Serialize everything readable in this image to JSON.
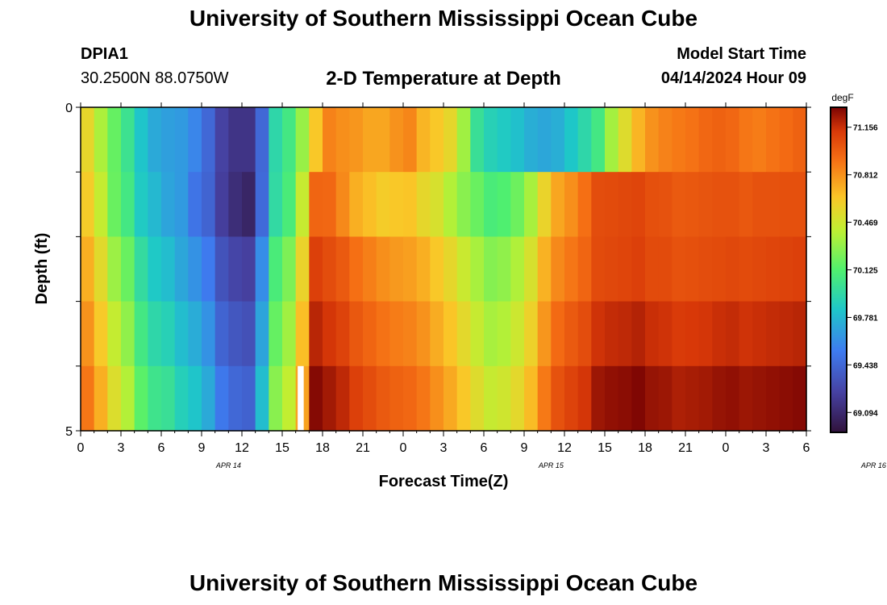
{
  "header": {
    "title": "University of Southern Mississippi Ocean Cube",
    "station_id": "DPIA1",
    "station_coords": "30.2500N  88.0750W",
    "subtitle": "2-D Temperature at Depth",
    "model_start_label": "Model Start Time",
    "model_start_value": "04/14/2024 Hour 09"
  },
  "footer": {
    "title": "University of Southern Mississippi Ocean Cube"
  },
  "chart_data": {
    "type": "heatmap",
    "title": "2-D Temperature at Depth",
    "xlabel": "Forecast Time(Z)",
    "ylabel": "Depth (ft)",
    "x_tick_labels": [
      "0",
      "3",
      "6",
      "9",
      "12",
      "15",
      "18",
      "21",
      "0",
      "3",
      "6",
      "9",
      "12",
      "15",
      "18",
      "21",
      "0",
      "3",
      "6"
    ],
    "date_labels": [
      {
        "text": "APR 14",
        "tick_index": 11
      },
      {
        "text": "APR 15",
        "tick_index": 35
      },
      {
        "text": "APR 16",
        "tick_index": 59
      }
    ],
    "y_tick_labels": [
      "0",
      "5"
    ],
    "ylim": [
      0,
      5
    ],
    "depth_bins": 5,
    "time_steps": 54,
    "colorbar": {
      "unit": "degF",
      "min": 68.95,
      "max": 71.3,
      "tick_labels": [
        "71.156",
        "70.812",
        "70.469",
        "70.125",
        "69.781",
        "69.438",
        "69.094"
      ],
      "tick_values": [
        71.156,
        70.812,
        70.469,
        70.125,
        69.781,
        69.438,
        69.094
      ]
    },
    "missing": [
      {
        "depth_bin": 4,
        "time_index": 16
      }
    ],
    "values_degF": [
      [
        70.56,
        70.36,
        70.18,
        70.02,
        69.83,
        69.72,
        69.68,
        69.66,
        69.58,
        69.44,
        69.24,
        69.16,
        69.16,
        69.44,
        69.94,
        70.06,
        70.31,
        70.64,
        70.86,
        70.82,
        70.8,
        70.75,
        70.75,
        70.81,
        70.85,
        70.7,
        70.64,
        70.56,
        70.33,
        70.0,
        69.9,
        69.86,
        69.81,
        69.74,
        69.71,
        69.74,
        69.84,
        69.94,
        70.06,
        70.34,
        70.53,
        70.7,
        70.81,
        70.86,
        70.89,
        70.91,
        70.95,
        70.97,
        70.95,
        70.9,
        70.88,
        70.91,
        70.94,
        70.97
      ],
      [
        70.62,
        70.43,
        70.19,
        70.06,
        69.86,
        69.78,
        69.7,
        69.66,
        69.5,
        69.42,
        69.22,
        69.12,
        69.07,
        69.45,
        69.96,
        70.09,
        70.44,
        70.96,
        70.95,
        70.84,
        70.72,
        70.67,
        70.62,
        70.64,
        70.65,
        70.56,
        70.5,
        70.38,
        70.27,
        70.19,
        70.09,
        70.12,
        70.2,
        70.35,
        70.58,
        70.75,
        70.82,
        70.92,
        71.05,
        71.06,
        71.07,
        71.08,
        71.04,
        71.03,
        71.0,
        71.01,
        71.02,
        71.03,
        71.03,
        71.01,
        71.03,
        71.03,
        71.04,
        71.04
      ],
      [
        70.72,
        70.54,
        70.32,
        70.19,
        69.97,
        69.85,
        69.8,
        69.71,
        69.63,
        69.53,
        69.33,
        69.26,
        69.23,
        69.61,
        70.09,
        70.24,
        70.58,
        71.1,
        71.05,
        71.0,
        70.92,
        70.87,
        70.82,
        70.79,
        70.77,
        70.72,
        70.64,
        70.56,
        70.45,
        70.35,
        70.26,
        70.29,
        70.37,
        70.5,
        70.71,
        70.84,
        70.9,
        70.96,
        71.06,
        71.07,
        71.08,
        71.1,
        71.06,
        71.06,
        71.03,
        71.04,
        71.05,
        71.06,
        71.07,
        71.06,
        71.07,
        71.08,
        71.09,
        71.1
      ],
      [
        70.81,
        70.63,
        70.43,
        70.29,
        70.06,
        69.94,
        69.9,
        69.8,
        69.73,
        69.63,
        69.42,
        69.35,
        69.32,
        69.7,
        70.18,
        70.33,
        70.67,
        71.19,
        71.14,
        71.09,
        71.01,
        70.96,
        70.91,
        70.88,
        70.86,
        70.81,
        70.73,
        70.65,
        70.55,
        70.44,
        70.35,
        70.38,
        70.46,
        70.59,
        70.8,
        70.94,
        71.0,
        71.05,
        71.15,
        71.17,
        71.18,
        71.2,
        71.16,
        71.15,
        71.12,
        71.13,
        71.14,
        71.16,
        71.17,
        71.15,
        71.16,
        71.17,
        71.18,
        71.19
      ],
      [
        70.9,
        70.72,
        70.52,
        70.38,
        70.15,
        70.03,
        70.0,
        69.89,
        69.83,
        69.72,
        69.52,
        69.44,
        69.41,
        69.8,
        70.27,
        70.42,
        70.76,
        71.28,
        71.23,
        71.18,
        71.1,
        71.05,
        71.0,
        70.97,
        70.95,
        70.9,
        70.82,
        70.74,
        70.64,
        70.53,
        70.44,
        70.47,
        70.55,
        70.68,
        70.89,
        71.03,
        71.09,
        71.14,
        71.24,
        71.26,
        71.27,
        71.29,
        71.25,
        71.24,
        71.21,
        71.22,
        71.23,
        71.25,
        71.26,
        71.24,
        71.25,
        71.26,
        71.27,
        71.28
      ]
    ]
  }
}
